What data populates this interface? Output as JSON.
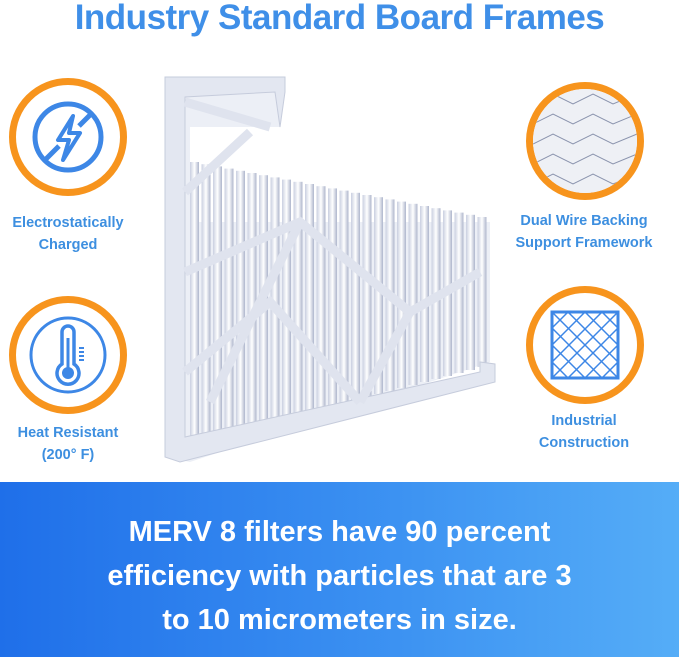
{
  "title": "Industry Standard Board Frames",
  "features": [
    {
      "label_1": "Electrostatically",
      "label_2": "Charged",
      "icon": "lightning-no-static-icon"
    },
    {
      "label_1": "Heat Resistant",
      "label_2": "(200° F)",
      "icon": "thermometer-icon"
    },
    {
      "label_1": "Dual Wire Backing",
      "label_2": "Support Framework",
      "icon": "wire-mesh-photo"
    },
    {
      "label_1": "Industrial",
      "label_2": "Construction",
      "icon": "grid-frame-icon"
    }
  ],
  "banner": {
    "line_1": "MERV 8 filters have 90 percent",
    "line_2": "efficiency with particles that are 3",
    "line_3": "to 10 micrometers in size."
  },
  "colors": {
    "accent_blue": "#3f8fe8",
    "ring_orange": "#f7941d",
    "banner_blue": "#2f80ef"
  }
}
